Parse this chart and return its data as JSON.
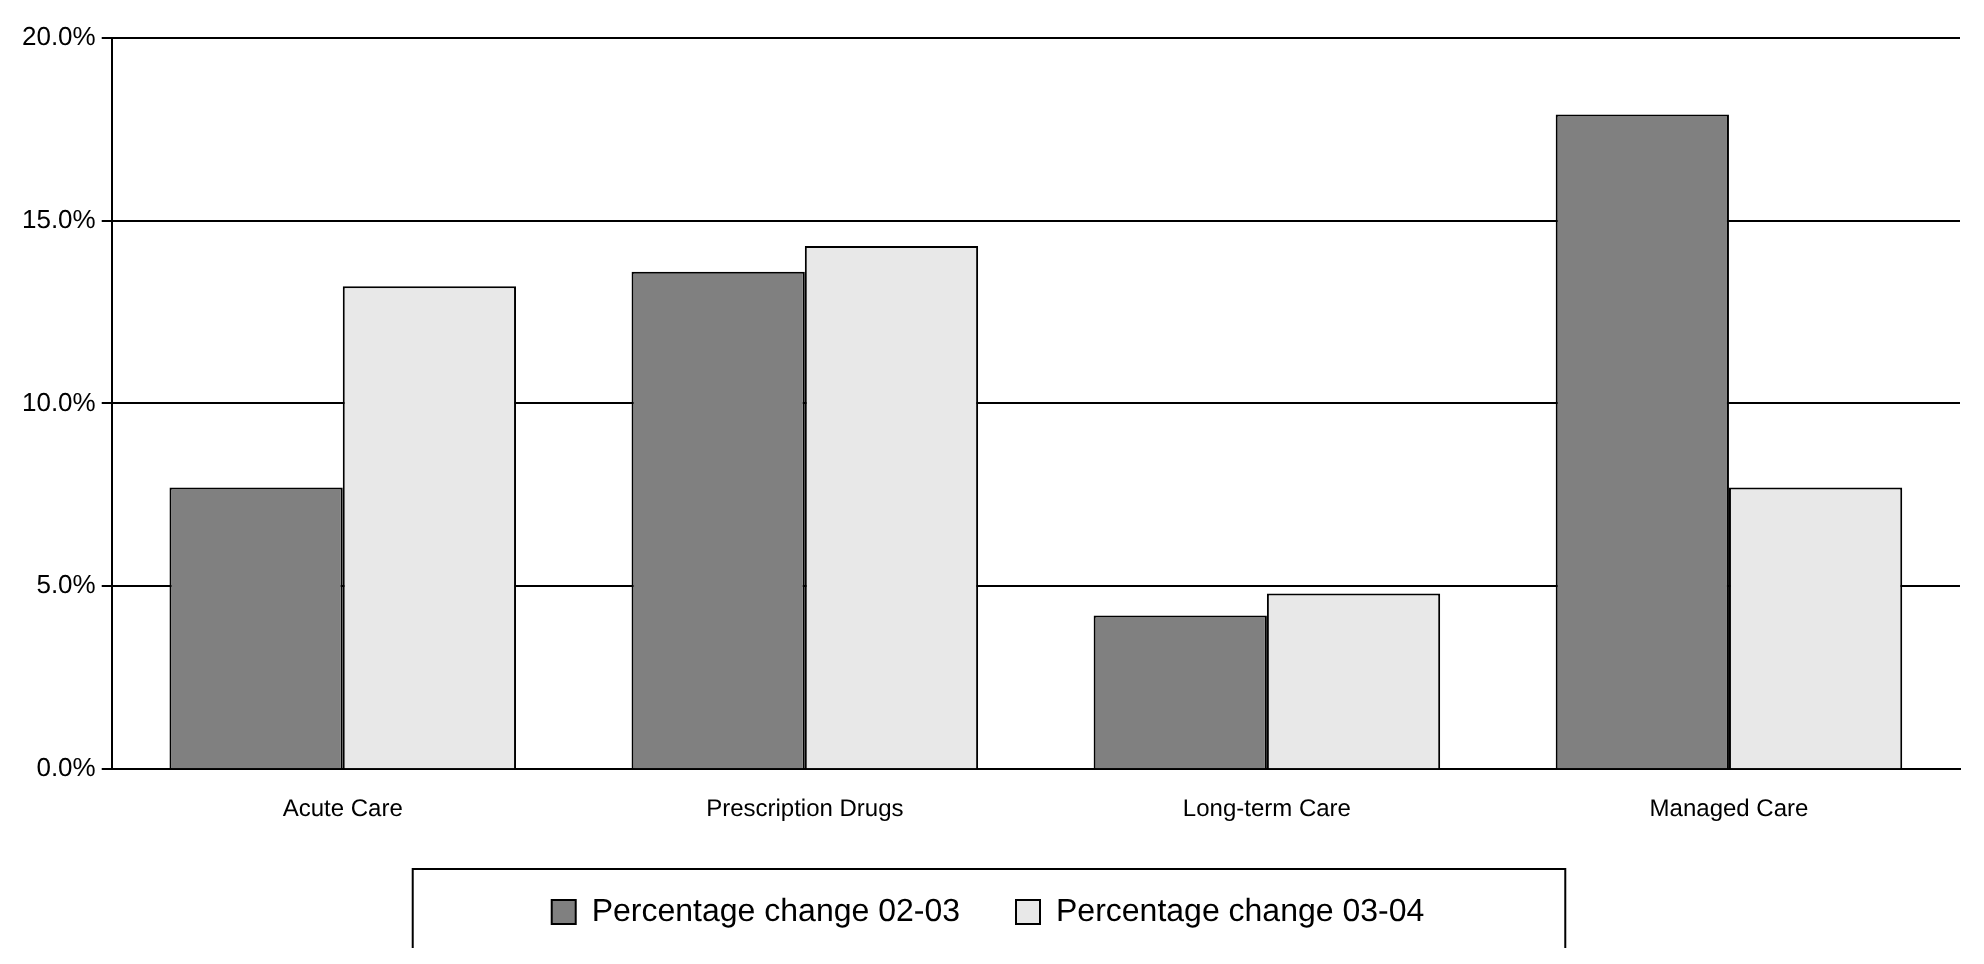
{
  "chart_data": {
    "type": "bar",
    "categories": [
      "Acute Care",
      "Prescription Drugs",
      "Long-term Care",
      "Managed Care"
    ],
    "series": [
      {
        "name": "Percentage change 02-03",
        "color": "#808080",
        "values": [
          7.7,
          13.6,
          4.2,
          17.9
        ]
      },
      {
        "name": "Percentage change 03-04",
        "color": "#e8e8e8",
        "values": [
          13.2,
          14.3,
          4.8,
          7.7
        ]
      }
    ],
    "ylim": [
      0,
      20
    ],
    "yticks": [
      {
        "value": 0,
        "label": "0.0%"
      },
      {
        "value": 5,
        "label": "5.0%"
      },
      {
        "value": 10,
        "label": "10.0%"
      },
      {
        "value": 15,
        "label": "15.0%"
      },
      {
        "value": 20,
        "label": "20.0%"
      }
    ],
    "grid": "y",
    "legend": "bottom"
  }
}
